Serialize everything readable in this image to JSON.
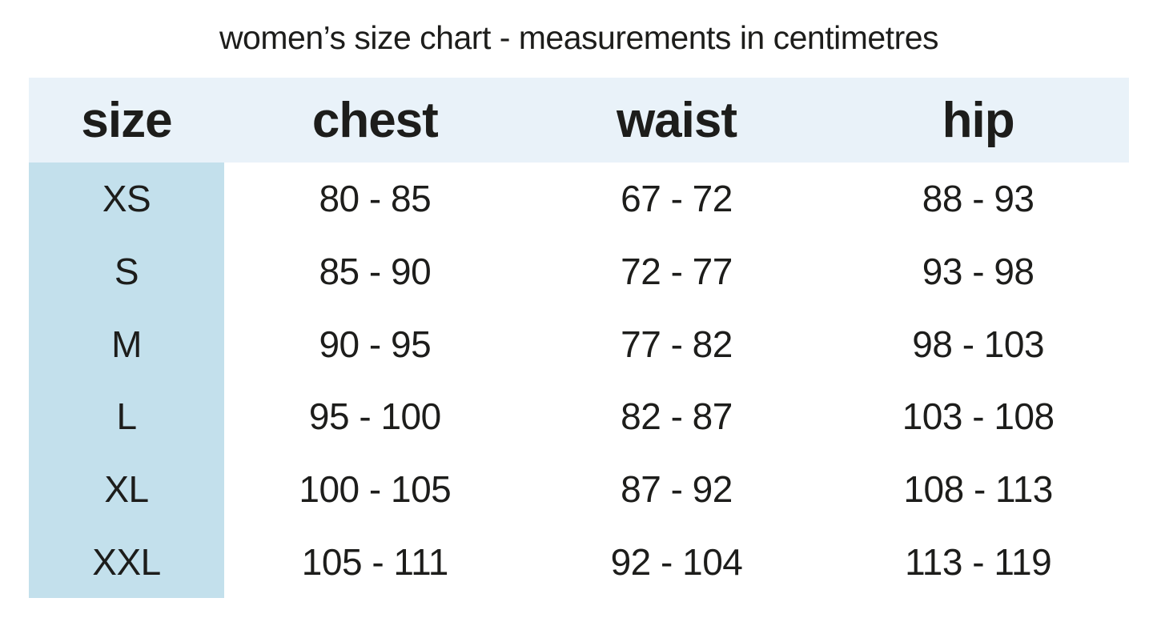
{
  "title": "women’s size chart - measurements in centimetres",
  "colors": {
    "background": "#ffffff",
    "header_bg": "#e9f2f9",
    "size_column_bg": "#c3e0ec",
    "text": "#1d1d1b"
  },
  "chart_data": {
    "type": "table",
    "title": "women’s size chart - measurements in centimetres",
    "columns": [
      "size",
      "chest",
      "waist",
      "hip"
    ],
    "rows": [
      {
        "size": "XS",
        "chest": "80 - 85",
        "waist": "67 - 72",
        "hip": "88 - 93"
      },
      {
        "size": "S",
        "chest": "85 - 90",
        "waist": "72 - 77",
        "hip": "93 - 98"
      },
      {
        "size": "M",
        "chest": "90 - 95",
        "waist": "77 - 82",
        "hip": "98 - 103"
      },
      {
        "size": "L",
        "chest": "95 - 100",
        "waist": "82 - 87",
        "hip": "103 - 108"
      },
      {
        "size": "XL",
        "chest": "100 - 105",
        "waist": "87 - 92",
        "hip": "108 - 113"
      },
      {
        "size": "XXL",
        "chest": "105 - 111",
        "waist": "92 - 104",
        "hip": "113 - 119"
      }
    ]
  }
}
